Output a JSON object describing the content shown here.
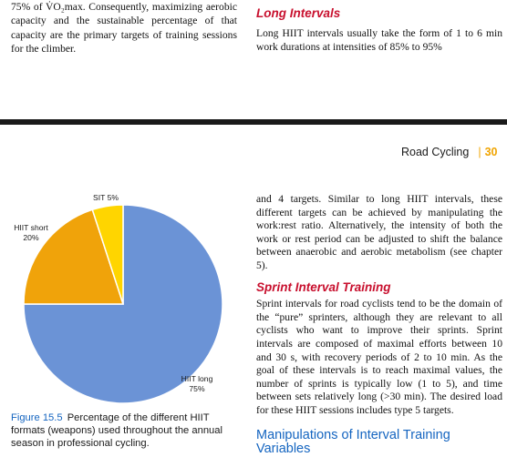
{
  "top": {
    "left_paragraph": "75% of V̇O₂max. Consequently, maximizing aerobic capacity and the sustainable percentage of that capacity are the primary targets of training sessions for the climber.",
    "right_heading": "Long Intervals",
    "right_paragraph": "Long HIIT intervals usually take the form of 1 to 6 min work durations at intensities of 85% to 95%"
  },
  "running_head": {
    "title": "Road Cycling",
    "separator": "|",
    "page_number": "30"
  },
  "chart_data": {
    "type": "pie",
    "title": "",
    "categories": [
      "HIIT long",
      "HIIT short",
      "SIT"
    ],
    "values": [
      75,
      20,
      5
    ],
    "labels": [
      {
        "name": "HIIT long",
        "pct": "75%"
      },
      {
        "name": "HIIT short",
        "pct": "20%"
      },
      {
        "name": "SIT",
        "pct": "5%"
      }
    ],
    "colors": [
      "#6b93d6",
      "#f0a30a",
      "#ffd500"
    ],
    "legend": "none"
  },
  "caption": {
    "label": "Figure 15.5",
    "text": "Percentage of the different HIIT formats (weapons) used throughout the annual season in professional cycling."
  },
  "body": {
    "para1": "and 4 targets. Similar to long HIIT intervals, these different targets can be achieved by manipulating the work:rest ratio. Alternatively, the intensity of both the work or rest period can be adjusted to shift the balance between anaerobic and aerobic metabolism (see chapter 5).",
    "heading_sprint": "Sprint Interval Training",
    "para2": "Sprint intervals for road cyclists tend to be the domain of the “pure” sprinters, although they are relevant to all cyclists who want to improve their sprints. Sprint intervals are composed of maximal efforts between 10 and 30 s, with recovery periods of 2 to 10 min. As the goal of these intervals is to reach maximal values, the number of sprints is typically low (1 to 5), and time between sets relatively long (>30 min). The desired load for these HIIT sessions includes type 5 targets.",
    "heading_manip": "Manipulations of Interval Training Variables"
  }
}
